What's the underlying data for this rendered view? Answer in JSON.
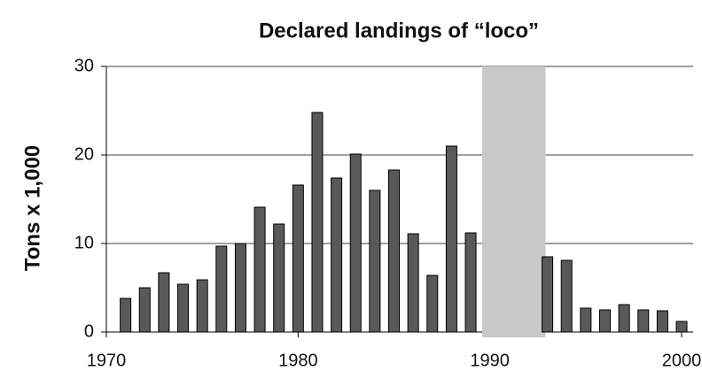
{
  "chart_data": {
    "type": "bar",
    "title": "Declared landings of “loco”",
    "y_label": "Tons x 1,000",
    "x": [
      1971,
      1972,
      1973,
      1974,
      1975,
      1976,
      1977,
      1978,
      1979,
      1980,
      1981,
      1982,
      1983,
      1984,
      1985,
      1986,
      1987,
      1988,
      1989,
      1993,
      1994,
      1995,
      1996,
      1997,
      1998,
      1999,
      2000
    ],
    "values": [
      3.8,
      5,
      6.7,
      5.4,
      5.9,
      9.7,
      10,
      14.1,
      12.2,
      16.6,
      24.8,
      17.4,
      20.1,
      16,
      18.3,
      11.1,
      6.4,
      21,
      11.2,
      8.5,
      8.1,
      2.7,
      2.5,
      3.1,
      2.5,
      2.4,
      1.2
    ],
    "color": "#595959",
    "shaded_region": [
      1989.6,
      1992.9
    ],
    "shade_color": "#c8c8c8",
    "xlim": [
      1970,
      2000.6
    ],
    "xticks": [
      1970,
      1980,
      1990,
      2000
    ],
    "ylim": [
      0,
      30
    ],
    "yticks": [
      0,
      10,
      20,
      30
    ],
    "grid": true
  }
}
